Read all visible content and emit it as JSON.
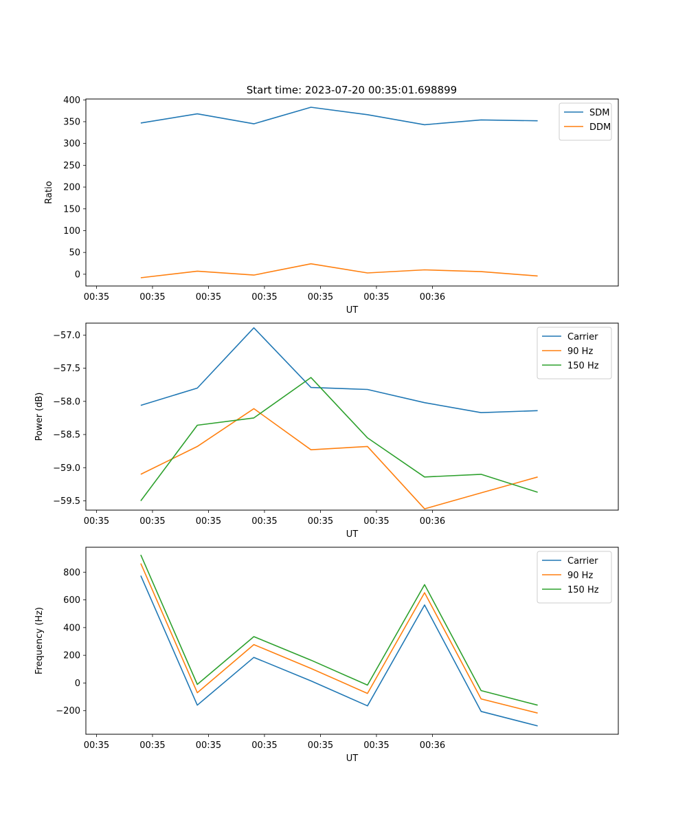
{
  "figure_title": "Start time: 2023-07-20 00:35:01.698899",
  "chart_data": [
    {
      "type": "line",
      "title": "Start time: 2023-07-20 00:35:01.698899",
      "xlabel": "UT",
      "ylabel": "Ratio",
      "x_ticks": [
        "00:35",
        "00:35",
        "00:35",
        "00:35",
        "00:35",
        "00:35",
        "00:36"
      ],
      "x_range": [
        -0.19,
        9.32
      ],
      "x": [
        0.79,
        1.8,
        2.81,
        3.83,
        4.84,
        5.86,
        6.87,
        7.88
      ],
      "ylim": [
        -27,
        402
      ],
      "y_ticks": [
        0,
        50,
        100,
        150,
        200,
        250,
        300,
        350,
        400
      ],
      "legend_position": "top-right",
      "series": [
        {
          "name": "SDM",
          "color": "#1f77b4",
          "values": [
            347,
            368,
            345,
            383,
            366,
            343,
            354,
            352
          ]
        },
        {
          "name": "DDM",
          "color": "#ff7f0e",
          "values": [
            -8,
            7,
            -2,
            24,
            3,
            10,
            6,
            -4
          ]
        }
      ]
    },
    {
      "type": "line",
      "xlabel": "UT",
      "ylabel": "Power (dB)",
      "x_ticks": [
        "00:35",
        "00:35",
        "00:35",
        "00:35",
        "00:35",
        "00:35",
        "00:36"
      ],
      "x_range": [
        -0.19,
        9.32
      ],
      "x": [
        0.79,
        1.8,
        2.81,
        3.83,
        4.84,
        5.86,
        6.87,
        7.88
      ],
      "ylim": [
        -59.64,
        -56.82
      ],
      "y_ticks": [
        -59.5,
        -59.0,
        -58.5,
        -58.0,
        -57.5,
        -57.0
      ],
      "y_tick_labels": [
        "−59.5",
        "−59.0",
        "−58.5",
        "−58.0",
        "−57.5",
        "−57.0"
      ],
      "legend_position": "top-right",
      "series": [
        {
          "name": "Carrier",
          "color": "#1f77b4",
          "values": [
            -58.06,
            -57.8,
            -56.89,
            -57.79,
            -57.82,
            -58.02,
            -58.17,
            -58.14
          ]
        },
        {
          "name": "90 Hz",
          "color": "#ff7f0e",
          "values": [
            -59.1,
            -58.68,
            -58.11,
            -58.73,
            -58.68,
            -59.62,
            -59.38,
            -59.14
          ]
        },
        {
          "name": "150 Hz",
          "color": "#2ca02c",
          "values": [
            -59.5,
            -58.36,
            -58.25,
            -57.64,
            -58.55,
            -59.14,
            -59.1,
            -59.37
          ]
        }
      ]
    },
    {
      "type": "line",
      "xlabel": "UT",
      "ylabel": "Frequency (Hz)",
      "x_ticks": [
        "00:35",
        "00:35",
        "00:35",
        "00:35",
        "00:35",
        "00:35",
        "00:36"
      ],
      "x_range": [
        -0.19,
        9.32
      ],
      "x": [
        0.79,
        1.8,
        2.81,
        3.83,
        4.84,
        5.86,
        6.87,
        7.88
      ],
      "ylim": [
        -370,
        980
      ],
      "y_ticks": [
        -200,
        0,
        200,
        400,
        600,
        800
      ],
      "y_tick_labels": [
        "−200",
        "0",
        "200",
        "400",
        "600",
        "800"
      ],
      "legend_position": "top-right",
      "series": [
        {
          "name": "Carrier",
          "color": "#1f77b4",
          "values": [
            775,
            -160,
            185,
            15,
            -165,
            563,
            -205,
            -310
          ]
        },
        {
          "name": "90 Hz",
          "color": "#ff7f0e",
          "values": [
            863,
            -70,
            277,
            105,
            -75,
            652,
            -115,
            -217
          ]
        },
        {
          "name": "150 Hz",
          "color": "#2ca02c",
          "values": [
            925,
            -10,
            335,
            165,
            -15,
            710,
            -55,
            -160
          ]
        }
      ]
    }
  ]
}
